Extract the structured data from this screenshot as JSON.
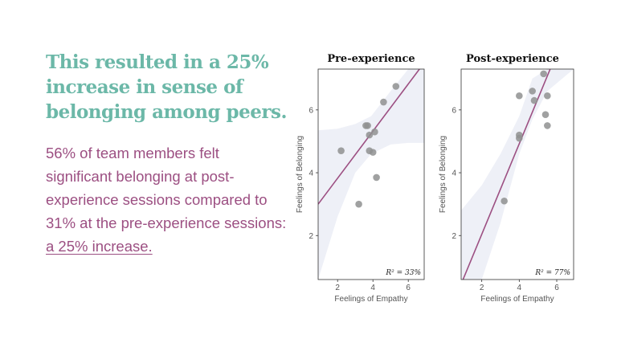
{
  "headline": "This resulted in a 25% increase in sense of belonging  among peers.",
  "body": {
    "text": "56% of team members felt significant belonging at post-experience sessions compared to 31% at the pre-experience sessions: ",
    "highlight": "a 25% increase."
  },
  "colors": {
    "headline": "#6cb8a8",
    "body": "#9c4f82",
    "line": "#9c4f82",
    "points": "#8f9190",
    "band": "#eef0f7"
  },
  "chart_data": [
    {
      "type": "scatter",
      "title": "Pre-experience",
      "xlabel": "Feelings of Empathy",
      "ylabel": "Feelings of Belonging",
      "xlim": [
        0.9,
        6.9
      ],
      "ylim": [
        0.6,
        7.3
      ],
      "xticks": [
        2,
        4,
        6
      ],
      "yticks": [
        2,
        4,
        6
      ],
      "annotation": "R² = 33%",
      "points": [
        {
          "x": 2.2,
          "y": 4.7
        },
        {
          "x": 3.2,
          "y": 3.0
        },
        {
          "x": 3.6,
          "y": 5.5
        },
        {
          "x": 3.7,
          "y": 5.5
        },
        {
          "x": 3.8,
          "y": 5.2
        },
        {
          "x": 3.8,
          "y": 4.7
        },
        {
          "x": 4.0,
          "y": 4.65
        },
        {
          "x": 4.1,
          "y": 5.3
        },
        {
          "x": 4.2,
          "y": 3.85
        },
        {
          "x": 4.6,
          "y": 6.25
        },
        {
          "x": 5.3,
          "y": 6.75
        }
      ],
      "fit": {
        "x": [
          0.9,
          6.9
        ],
        "y": [
          3.0,
          7.5
        ]
      },
      "band": {
        "x": [
          0.9,
          2.0,
          3.0,
          3.9,
          5.0,
          6.0,
          6.9
        ],
        "upper": [
          5.35,
          5.4,
          5.55,
          5.8,
          6.6,
          7.3,
          7.3
        ],
        "lower": [
          0.6,
          2.6,
          4.0,
          4.6,
          4.9,
          4.95,
          4.95
        ]
      }
    },
    {
      "type": "scatter",
      "title": "Post-experience",
      "xlabel": "Feelings of Empathy",
      "ylabel": "Feelings of Belonging",
      "xlim": [
        0.9,
        6.9
      ],
      "ylim": [
        0.6,
        7.3
      ],
      "xticks": [
        2,
        4,
        6
      ],
      "yticks": [
        2,
        4,
        6
      ],
      "annotation": "R² = 77%",
      "points": [
        {
          "x": 3.2,
          "y": 3.1
        },
        {
          "x": 4.0,
          "y": 5.2
        },
        {
          "x": 4.0,
          "y": 5.1
        },
        {
          "x": 4.0,
          "y": 6.45
        },
        {
          "x": 4.7,
          "y": 6.6
        },
        {
          "x": 4.8,
          "y": 6.3
        },
        {
          "x": 5.3,
          "y": 7.15
        },
        {
          "x": 5.4,
          "y": 5.85
        },
        {
          "x": 5.5,
          "y": 6.45
        },
        {
          "x": 5.5,
          "y": 5.5
        }
      ],
      "fit": {
        "x": [
          1.0,
          5.65
        ],
        "y": [
          0.6,
          7.3
        ]
      },
      "band": {
        "x": [
          0.9,
          2.0,
          3.0,
          4.0,
          4.7,
          5.5,
          6.9
        ],
        "upper": [
          2.8,
          3.6,
          4.6,
          5.8,
          7.0,
          7.3,
          7.3
        ],
        "lower": [
          0.6,
          0.6,
          2.4,
          4.6,
          5.7,
          6.6,
          7.3
        ]
      }
    }
  ]
}
